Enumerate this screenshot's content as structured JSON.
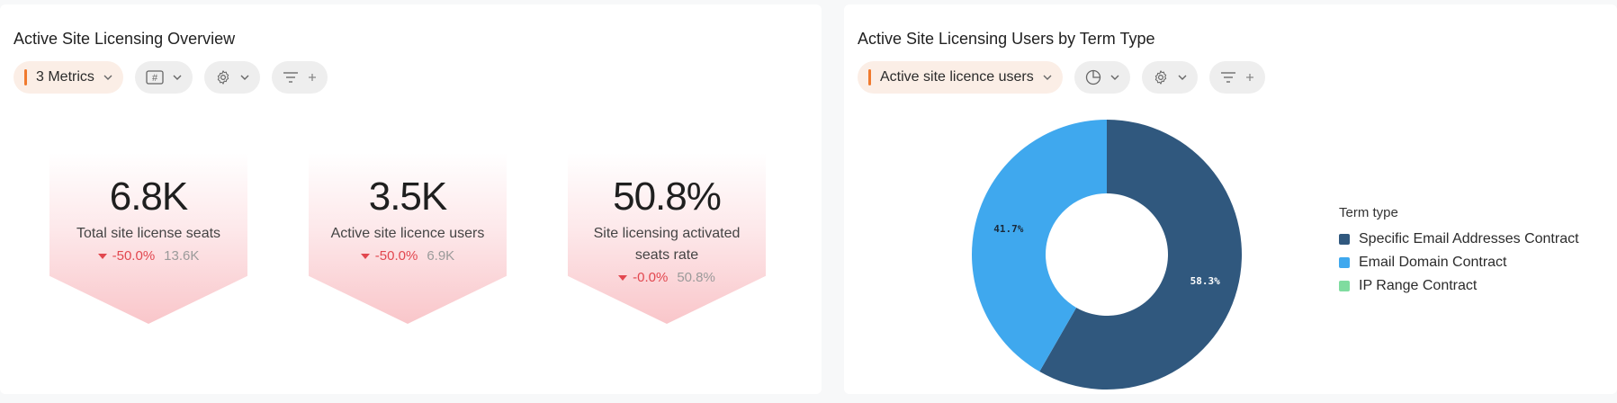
{
  "left_panel": {
    "title": "Active Site Licensing Overview",
    "toolbar": {
      "metrics_label": "3 Metrics"
    },
    "kpis": [
      {
        "value": "6.8K",
        "label": "Total site license seats",
        "change": "-50.0%",
        "previous": "13.6K"
      },
      {
        "value": "3.5K",
        "label": "Active site licence users",
        "change": "-50.0%",
        "previous": "6.9K"
      },
      {
        "value": "50.8%",
        "label": "Site licensing activated seats rate",
        "change": "-0.0%",
        "previous": "50.8%"
      }
    ]
  },
  "right_panel": {
    "title": "Active Site Licensing Users by Term Type",
    "toolbar": {
      "metric_label": "Active site licence users"
    }
  },
  "colors": {
    "accent": "#f07a2e",
    "negative": "#e2474f",
    "specific": "#30587e",
    "domain": "#3fa8ee",
    "ip": "#7fdc9f"
  },
  "chart_data": {
    "type": "pie",
    "legend_title": "Term type",
    "categories": [
      "Specific Email Addresses Contract",
      "Email Domain Contract",
      "IP Range Contract"
    ],
    "values": [
      58.3,
      41.7,
      0
    ],
    "data_labels": [
      "58.3%",
      "41.7%",
      ""
    ],
    "colors": [
      "#30587e",
      "#3fa8ee",
      "#7fdc9f"
    ],
    "legend_position": "right"
  }
}
